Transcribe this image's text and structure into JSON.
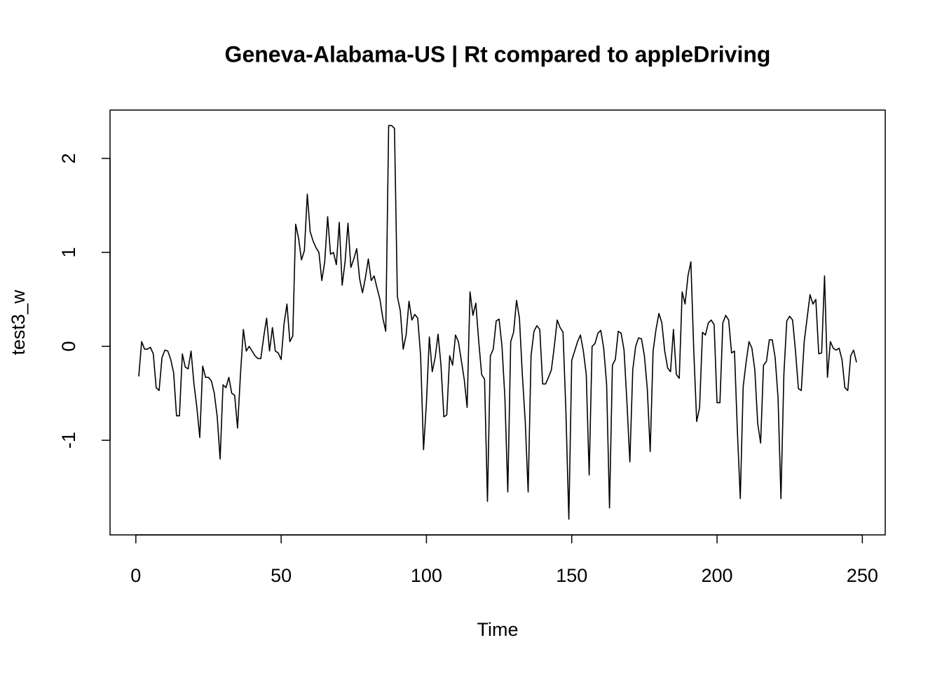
{
  "chart_data": {
    "type": "line",
    "title": "Geneva-Alabama-US | Rt compared to appleDriving",
    "xlabel": "Time",
    "ylabel": "test3_w",
    "x": [
      1,
      2,
      3,
      4,
      5,
      6,
      7,
      8,
      9,
      10,
      11,
      12,
      13,
      14,
      15,
      16,
      17,
      18,
      19,
      20,
      21,
      22,
      23,
      24,
      25,
      26,
      27,
      28,
      29,
      30,
      31,
      32,
      33,
      34,
      35,
      36,
      37,
      38,
      39,
      40,
      41,
      42,
      43,
      44,
      45,
      46,
      47,
      48,
      49,
      50,
      51,
      52,
      53,
      54,
      55,
      56,
      57,
      58,
      59,
      60,
      61,
      62,
      63,
      64,
      65,
      66,
      67,
      68,
      69,
      70,
      71,
      72,
      73,
      74,
      75,
      76,
      77,
      78,
      79,
      80,
      81,
      82,
      83,
      84,
      85,
      86,
      87,
      88,
      89,
      90,
      91,
      92,
      93,
      94,
      95,
      96,
      97,
      98,
      99,
      100,
      101,
      102,
      103,
      104,
      105,
      106,
      107,
      108,
      109,
      110,
      111,
      112,
      113,
      114,
      115,
      116,
      117,
      118,
      119,
      120,
      121,
      122,
      123,
      124,
      125,
      126,
      127,
      128,
      129,
      130,
      131,
      132,
      133,
      134,
      135,
      136,
      137,
      138,
      139,
      140,
      141,
      142,
      143,
      144,
      145,
      146,
      147,
      148,
      149,
      150,
      151,
      152,
      153,
      154,
      155,
      156,
      157,
      158,
      159,
      160,
      161,
      162,
      163,
      164,
      165,
      166,
      167,
      168,
      169,
      170,
      171,
      172,
      173,
      174,
      175,
      176,
      177,
      178,
      179,
      180,
      181,
      182,
      183,
      184,
      185,
      186,
      187,
      188,
      189,
      190,
      191,
      192,
      193,
      194,
      195,
      196,
      197,
      198,
      199,
      200,
      201,
      202,
      203,
      204,
      205,
      206,
      207,
      208,
      209,
      210,
      211,
      212,
      213,
      214,
      215,
      216,
      217,
      218,
      219,
      220,
      221,
      222,
      223,
      224,
      225,
      226,
      227,
      228,
      229,
      230,
      231,
      232,
      233,
      234,
      235,
      236,
      237,
      238,
      239,
      240,
      241,
      242,
      243,
      244,
      245,
      246,
      247,
      248
    ],
    "series": [
      {
        "color": "#000000",
        "values": [
          -0.32,
          0.05,
          -0.03,
          -0.03,
          -0.01,
          -0.08,
          -0.44,
          -0.47,
          -0.12,
          -0.04,
          -0.05,
          -0.14,
          -0.28,
          -0.74,
          -0.74,
          -0.08,
          -0.22,
          -0.24,
          -0.05,
          -0.4,
          -0.65,
          -0.97,
          -0.21,
          -0.33,
          -0.33,
          -0.37,
          -0.5,
          -0.75,
          -1.2,
          -0.41,
          -0.44,
          -0.33,
          -0.5,
          -0.52,
          -0.87,
          -0.3,
          0.18,
          -0.05,
          0.0,
          -0.05,
          -0.1,
          -0.13,
          -0.13,
          0.1,
          0.3,
          -0.05,
          0.2,
          -0.05,
          -0.07,
          -0.14,
          0.24,
          0.45,
          0.05,
          0.11,
          1.3,
          1.15,
          0.92,
          1.02,
          1.62,
          1.22,
          1.12,
          1.05,
          1.0,
          0.7,
          0.9,
          1.38,
          0.98,
          1.0,
          0.87,
          1.32,
          0.65,
          0.9,
          1.31,
          0.84,
          0.93,
          1.04,
          0.72,
          0.57,
          0.73,
          0.93,
          0.7,
          0.75,
          0.62,
          0.5,
          0.3,
          0.16,
          2.35,
          2.35,
          2.32,
          0.53,
          0.38,
          -0.03,
          0.12,
          0.48,
          0.28,
          0.34,
          0.3,
          -0.1,
          -1.1,
          -0.6,
          0.1,
          -0.27,
          -0.12,
          0.13,
          -0.2,
          -0.75,
          -0.73,
          -0.1,
          -0.2,
          0.12,
          0.05,
          -0.15,
          -0.35,
          -0.65,
          0.58,
          0.33,
          0.46,
          0.05,
          -0.3,
          -0.35,
          -1.65,
          -0.1,
          -0.03,
          0.27,
          0.29,
          0.0,
          -0.55,
          -1.55,
          0.05,
          0.15,
          0.49,
          0.3,
          -0.3,
          -0.8,
          -1.55,
          -0.1,
          0.16,
          0.22,
          0.18,
          -0.4,
          -0.4,
          -0.33,
          -0.25,
          0.0,
          0.28,
          0.2,
          0.15,
          -0.7,
          -1.84,
          -0.15,
          -0.05,
          0.05,
          0.12,
          -0.05,
          -0.3,
          -1.37,
          0.0,
          0.03,
          0.14,
          0.17,
          -0.02,
          -0.4,
          -1.72,
          -0.2,
          -0.14,
          0.16,
          0.14,
          -0.04,
          -0.6,
          -1.23,
          -0.25,
          0.0,
          0.09,
          0.08,
          -0.1,
          -0.45,
          -1.12,
          -0.05,
          0.18,
          0.35,
          0.25,
          -0.05,
          -0.23,
          -0.27,
          0.18,
          -0.3,
          -0.34,
          0.58,
          0.45,
          0.75,
          0.9,
          -0.05,
          -0.8,
          -0.65,
          0.15,
          0.12,
          0.25,
          0.28,
          0.23,
          -0.6,
          -0.6,
          0.25,
          0.33,
          0.28,
          -0.07,
          -0.05,
          -0.9,
          -1.62,
          -0.43,
          -0.17,
          0.05,
          -0.02,
          -0.25,
          -0.82,
          -1.03,
          -0.2,
          -0.16,
          0.07,
          0.07,
          -0.12,
          -0.55,
          -1.62,
          -0.3,
          0.27,
          0.32,
          0.28,
          -0.05,
          -0.45,
          -0.47,
          0.05,
          0.3,
          0.55,
          0.45,
          0.5,
          -0.08,
          -0.07,
          0.75,
          -0.33,
          0.05,
          -0.02,
          -0.04,
          -0.02,
          -0.14,
          -0.44,
          -0.47,
          -0.1,
          -0.04,
          -0.17
        ]
      }
    ],
    "xlim": [
      -8.88,
      257.88
    ],
    "xticks": [
      0,
      50,
      100,
      150,
      200,
      250
    ],
    "ylim": [
      -2.007,
      2.515
    ],
    "yticks": [
      -1,
      0,
      1,
      2
    ]
  }
}
